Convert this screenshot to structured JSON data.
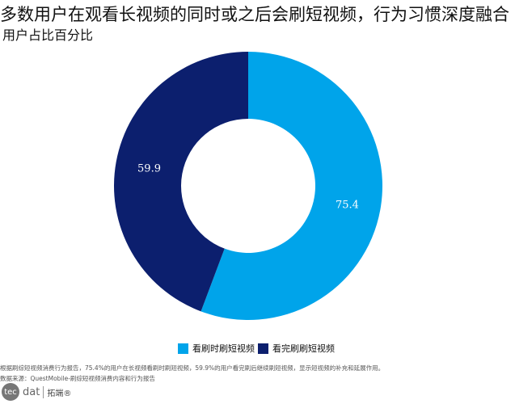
{
  "chart_data": {
    "type": "pie",
    "donut": true,
    "title": "多数用户在观看长视频的同时或之后会刷短视频，行为习惯深度融合",
    "subtitle": "用户占比百分比",
    "categories": [
      "看刷时刷短视频",
      "看完刷刷短视频"
    ],
    "values": [
      75.4,
      59.9
    ],
    "colors": [
      "#00a4ea",
      "#0c1f6e"
    ],
    "legend_position": "bottom"
  },
  "footer": {
    "note": "根据刷综短视频消费行为报告，75.4%的用户在长视频看刷时刷短视频，59.9%的用户看完刷后继续刷短视频，显示短视频的补充和延展作用。",
    "source": "数据来源：QuestMobile-刷综短视频消费内容和行为报告"
  },
  "logo": {
    "text": "tecdat",
    "cn": "拓端®"
  }
}
